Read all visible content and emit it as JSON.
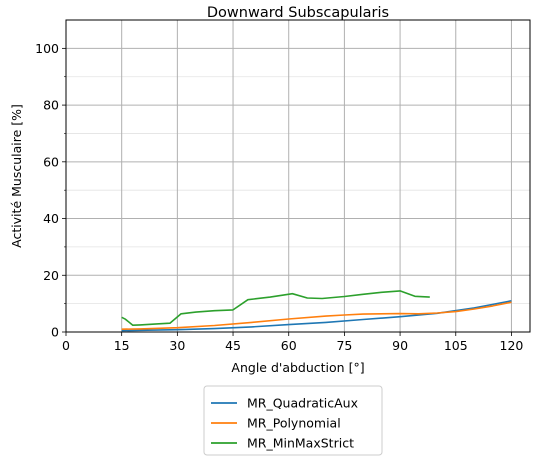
{
  "chart_data": {
    "type": "line",
    "title": "Downward Subscapularis",
    "xlabel": "Angle d'abduction [°]",
    "ylabel": "Activité Musculaire [%]",
    "xlim": [
      0,
      125
    ],
    "ylim": [
      0,
      110
    ],
    "xticks": [
      0,
      15,
      30,
      45,
      60,
      75,
      90,
      105,
      120
    ],
    "yticks": [
      0,
      20,
      40,
      60,
      80,
      100
    ],
    "y_minor_ticks": [
      10,
      30,
      50,
      70,
      90
    ],
    "grid": true,
    "legend_position": "below",
    "series": [
      {
        "name": "MR_QuadraticAux",
        "color": "#1f77b4",
        "x": [
          15,
          20,
          30,
          40,
          50,
          60,
          70,
          80,
          90,
          100,
          110,
          120
        ],
        "y": [
          0.5,
          0.6,
          0.8,
          1.2,
          1.8,
          2.6,
          3.4,
          4.4,
          5.4,
          6.6,
          8.5,
          11.0
        ]
      },
      {
        "name": "MR_Polynomial",
        "color": "#ff7f0e",
        "x": [
          15,
          20,
          30,
          40,
          50,
          60,
          70,
          75,
          80,
          90,
          95,
          100,
          105,
          110,
          115,
          120
        ],
        "y": [
          1.0,
          1.1,
          1.5,
          2.3,
          3.4,
          4.6,
          5.6,
          6.0,
          6.3,
          6.5,
          6.4,
          6.7,
          7.2,
          8.1,
          9.2,
          10.5
        ]
      },
      {
        "name": "MR_MinMaxStrict",
        "color": "#2ca02c",
        "x": [
          15,
          16,
          18,
          20,
          25,
          28,
          31,
          35,
          40,
          45,
          49,
          55,
          61,
          65,
          69,
          75,
          80,
          85,
          90,
          94,
          98
        ],
        "y": [
          5.2,
          4.5,
          2.4,
          2.5,
          2.9,
          3.1,
          6.4,
          7.0,
          7.5,
          7.8,
          11.4,
          12.3,
          13.5,
          12.0,
          11.8,
          12.5,
          13.3,
          14.0,
          14.5,
          12.6,
          12.3
        ]
      }
    ]
  }
}
